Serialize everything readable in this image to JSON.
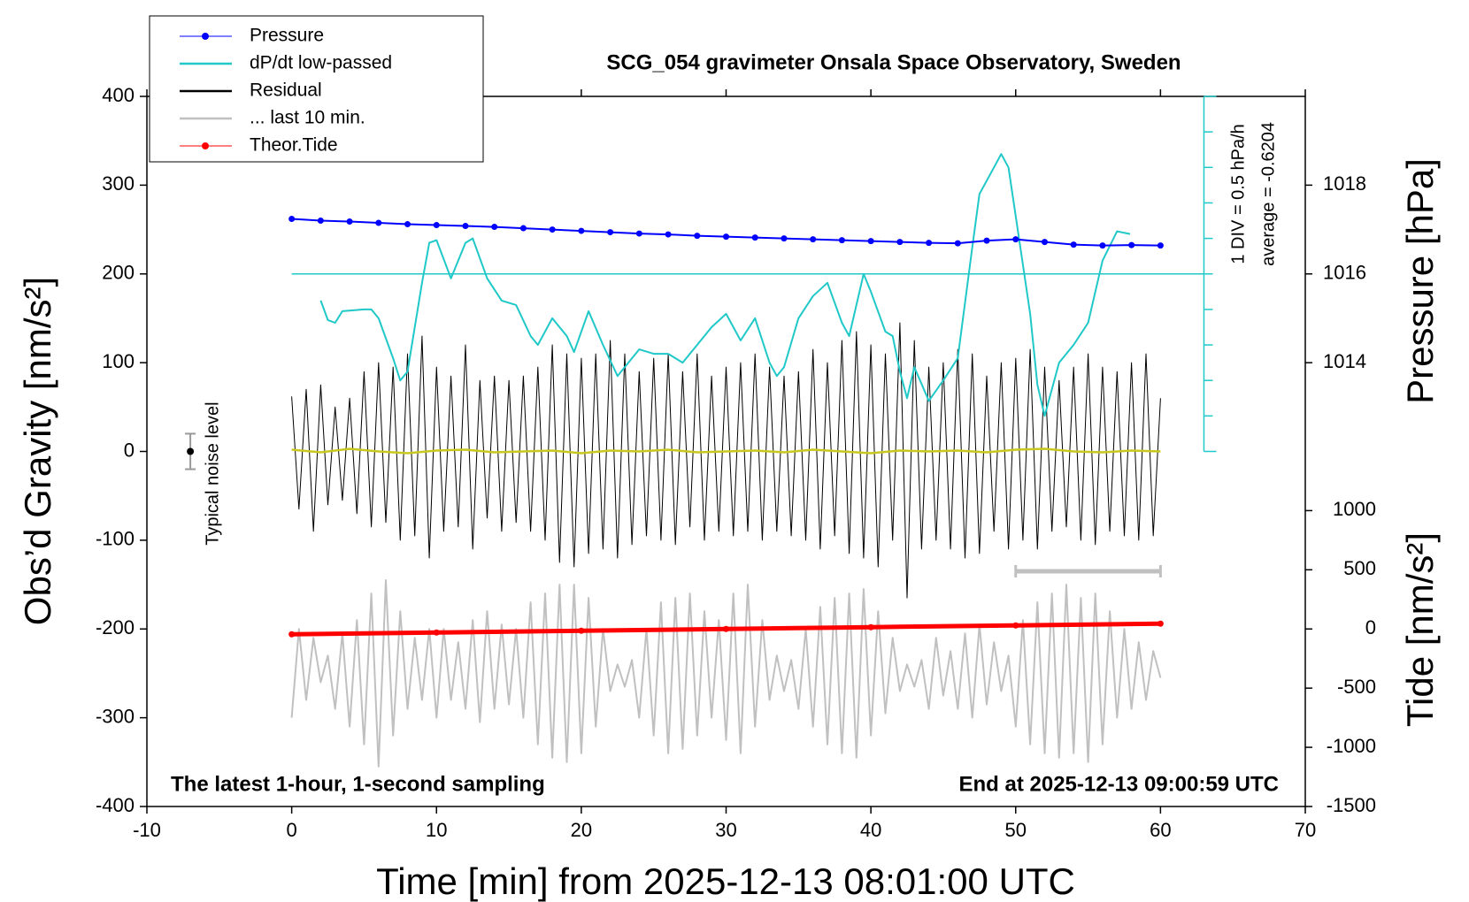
{
  "chart_data": {
    "type": "line",
    "title": "SCG_054 gravimeter Onsala Space Observatory, Sweden",
    "xlabel": "Time [min] from 2025-12-13 08:01:00 UTC",
    "ylabel": "Obs’d Gravity [nm/s²]",
    "y2label": "Pressure [hPa]",
    "y3label": "Tide [nm/s²]",
    "xlim": [
      -10,
      70
    ],
    "xticks": [
      -10,
      0,
      10,
      20,
      30,
      40,
      50,
      60,
      70
    ],
    "ylim": [
      -400,
      400
    ],
    "yticks": [
      -400,
      -300,
      -200,
      -100,
      0,
      100,
      200,
      300,
      400
    ],
    "y2lim": [
      1004,
      1020
    ],
    "y2ticks": [
      1014,
      1016,
      1018
    ],
    "y3lim": [
      -1500,
      4500
    ],
    "y3ticks": [
      -1500,
      -1000,
      -500,
      0,
      500,
      1000
    ],
    "legend": "top-left",
    "x": [
      0,
      0.5,
      1,
      1.5,
      2,
      2.5,
      3,
      3.5,
      4,
      4.5,
      5,
      5.5,
      6,
      6.5,
      7,
      7.5,
      8,
      8.5,
      9,
      9.5,
      10,
      10.5,
      11,
      11.5,
      12,
      12.5,
      13,
      13.5,
      14,
      14.5,
      15,
      15.5,
      16,
      16.5,
      17,
      17.5,
      18,
      18.5,
      19,
      19.5,
      20,
      20.5,
      21,
      21.5,
      22,
      22.5,
      23,
      23.5,
      24,
      24.5,
      25,
      25.5,
      26,
      26.5,
      27,
      27.5,
      28,
      28.5,
      29,
      29.5,
      30,
      30.5,
      31,
      31.5,
      32,
      32.5,
      33,
      33.5,
      34,
      34.5,
      35,
      35.5,
      36,
      36.5,
      37,
      37.5,
      38,
      38.5,
      39,
      39.5,
      40,
      40.5,
      41,
      41.5,
      42,
      42.5,
      43,
      43.5,
      44,
      44.5,
      45,
      45.5,
      46,
      46.5,
      47,
      47.5,
      48,
      48.5,
      49,
      49.5,
      50,
      50.5,
      51,
      51.5,
      52,
      52.5,
      53,
      53.5,
      54,
      54.5,
      55,
      55.5,
      56,
      56.5,
      57,
      57.5,
      58,
      58.5,
      59,
      59.5,
      60
    ],
    "series": [
      {
        "name": "Pressure",
        "color": "#0000ff",
        "axis": "y2",
        "marker": true,
        "x": [
          0,
          2,
          4,
          6,
          8,
          10,
          12,
          14,
          16,
          18,
          20,
          22,
          24,
          26,
          28,
          30,
          32,
          34,
          36,
          38,
          40,
          42,
          44,
          46,
          48,
          50,
          52,
          54,
          56,
          58,
          60
        ],
        "values": [
          1017.24,
          1017.2,
          1017.18,
          1017.15,
          1017.12,
          1017.1,
          1017.08,
          1017.06,
          1017.03,
          1017.0,
          1016.97,
          1016.94,
          1016.91,
          1016.89,
          1016.86,
          1016.84,
          1016.82,
          1016.8,
          1016.78,
          1016.76,
          1016.74,
          1016.72,
          1016.7,
          1016.69,
          1016.75,
          1016.78,
          1016.72,
          1016.66,
          1016.64,
          1016.65,
          1016.64
        ]
      },
      {
        "name": "dP/dt low-passed",
        "color": "#20c8c8",
        "marker": false,
        "x": [
          2,
          2.5,
          3,
          3.5,
          5,
          5.5,
          6,
          7,
          7.5,
          8,
          9,
          9.5,
          10,
          11,
          12,
          12.5,
          13.5,
          14.5,
          15.5,
          16.5,
          17,
          18,
          19,
          19.5,
          20.5,
          21.5,
          22.5,
          23,
          24,
          25,
          26,
          27,
          28,
          29,
          30,
          31,
          32,
          33,
          33.5,
          34,
          35,
          36,
          37,
          38,
          38.5,
          39.5,
          40,
          41,
          41.5,
          42,
          42.5,
          43,
          44,
          45,
          46,
          47,
          47.5,
          48.5,
          49,
          49.5,
          50,
          51,
          51.5,
          52,
          53,
          54,
          55,
          56,
          57,
          57.9
        ],
        "values": [
          170,
          148,
          145,
          158,
          160,
          160,
          150,
          105,
          80,
          90,
          190,
          235,
          238,
          195,
          235,
          240,
          195,
          170,
          165,
          130,
          120,
          150,
          130,
          112,
          158,
          120,
          85,
          95,
          115,
          110,
          110,
          100,
          120,
          140,
          155,
          125,
          150,
          100,
          85,
          95,
          150,
          175,
          190,
          145,
          130,
          200,
          180,
          135,
          130,
          90,
          60,
          95,
          57,
          80,
          105,
          230,
          290,
          320,
          335,
          320,
          265,
          155,
          75,
          40,
          100,
          120,
          145,
          215,
          248,
          245
        ]
      },
      {
        "name": "Residual",
        "color": "#000000",
        "marker": false,
        "values": [
          62,
          -65,
          70,
          -90,
          75,
          -60,
          50,
          -55,
          60,
          -70,
          90,
          -85,
          100,
          -80,
          95,
          -100,
          110,
          -95,
          130,
          -120,
          95,
          -90,
          85,
          -85,
          120,
          -110,
          80,
          -75,
          85,
          -90,
          80,
          -80,
          85,
          -90,
          95,
          -100,
          120,
          -125,
          110,
          -130,
          105,
          -115,
          110,
          -110,
          125,
          -120,
          110,
          -105,
          90,
          -95,
          105,
          -100,
          110,
          -105,
          90,
          -85,
          110,
          -100,
          85,
          -90,
          95,
          -95,
          100,
          -90,
          110,
          -100,
          95,
          -90,
          85,
          -95,
          90,
          -100,
          115,
          -110,
          100,
          -95,
          125,
          -115,
          135,
          -120,
          120,
          -130,
          110,
          -100,
          145,
          -165,
          125,
          -110,
          95,
          -100,
          100,
          -110,
          115,
          -120,
          110,
          -115,
          85,
          -90,
          100,
          -110,
          105,
          -100,
          115,
          -110,
          95,
          -90,
          80,
          -85,
          95,
          -100,
          110,
          -105,
          95,
          -90,
          90,
          -95,
          100,
          -100,
          110,
          -95,
          60
        ]
      },
      {
        "name": "... last 10 min.",
        "color": "#c0c0c0",
        "marker": false,
        "values": [
          -300,
          -200,
          -280,
          -210,
          -260,
          -230,
          -290,
          -205,
          -310,
          -190,
          -330,
          -160,
          -355,
          -145,
          -320,
          -180,
          -290,
          -210,
          -280,
          -200,
          -300,
          -200,
          -280,
          -215,
          -290,
          -190,
          -305,
          -180,
          -290,
          -195,
          -285,
          -200,
          -300,
          -170,
          -330,
          -160,
          -345,
          -150,
          -350,
          -150,
          -340,
          -165,
          -310,
          -200,
          -270,
          -240,
          -265,
          -235,
          -300,
          -200,
          -320,
          -170,
          -340,
          -165,
          -335,
          -160,
          -320,
          -180,
          -300,
          -190,
          -325,
          -160,
          -340,
          -150,
          -310,
          -190,
          -280,
          -230,
          -270,
          -235,
          -290,
          -200,
          -310,
          -175,
          -330,
          -165,
          -340,
          -160,
          -345,
          -155,
          -320,
          -180,
          -295,
          -210,
          -270,
          -240,
          -265,
          -235,
          -290,
          -210,
          -275,
          -225,
          -290,
          -205,
          -300,
          -195,
          -285,
          -215,
          -270,
          -230,
          -310,
          -190,
          -330,
          -170,
          -340,
          -160,
          -345,
          -150,
          -340,
          -165,
          -350,
          -160,
          -330,
          -180,
          -300,
          -200,
          -290,
          -215,
          -280,
          -225,
          -255
        ]
      },
      {
        "name": "Theor.Tide",
        "color": "#ff0000",
        "axis": "y3",
        "marker": true,
        "x": [
          0,
          10,
          20,
          30,
          40,
          50,
          60
        ],
        "values": [
          -45,
          -30,
          -15,
          0,
          15,
          30,
          45
        ]
      }
    ],
    "overlay": {
      "color": "#c8c820",
      "x": [
        0,
        2,
        4,
        6,
        8,
        10,
        12,
        14,
        16,
        18,
        20,
        22,
        24,
        26,
        28,
        30,
        32,
        34,
        36,
        38,
        40,
        42,
        44,
        46,
        48,
        50,
        52,
        54,
        56,
        58,
        60
      ],
      "values": [
        2,
        -1,
        3,
        0,
        -2,
        1,
        2,
        -1,
        0,
        1,
        -2,
        1,
        0,
        2,
        -1,
        0,
        1,
        -1,
        2,
        0,
        -2,
        1,
        0,
        1,
        -1,
        2,
        3,
        0,
        -1,
        1,
        0
      ]
    },
    "dpdt_axis": {
      "x": 63,
      "range": [
        0,
        400
      ],
      "ticks": [
        0,
        40,
        80,
        120,
        160,
        200,
        240,
        280,
        320,
        360,
        400
      ],
      "baseline": 200,
      "baseline_x": [
        0,
        63
      ],
      "color": "#20c8c8",
      "div_label": "1 DIV = 0.5 hPa/h",
      "average_label": "average = -0.6204"
    },
    "noise": {
      "x": -7,
      "value": 0,
      "error": 20,
      "label": "Typical noise level"
    },
    "last10_bar": {
      "x": [
        50,
        60
      ],
      "y": -135
    },
    "annotations": [
      "The latest 1-hour, 1-second sampling",
      "End at 2025-12-13 09:00:59 UTC"
    ]
  }
}
